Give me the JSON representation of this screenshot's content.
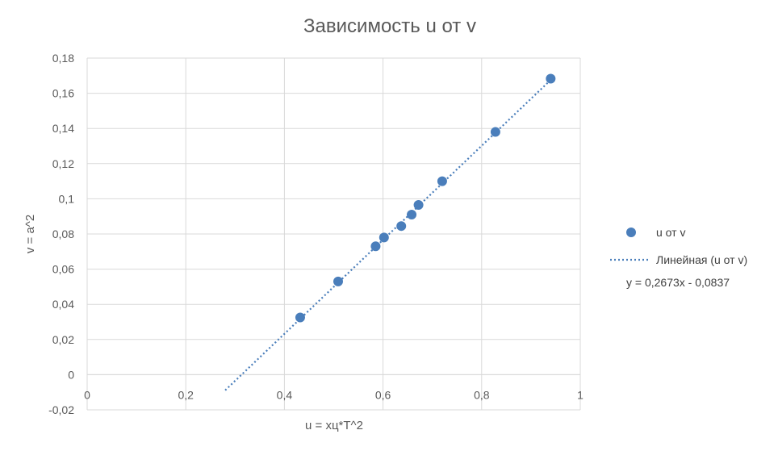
{
  "chart_data": {
    "type": "scatter",
    "title": "Зависимость u от v",
    "xlabel": "u = xц*T^2",
    "ylabel": "v = a^2",
    "xlim": [
      0,
      1
    ],
    "ylim": [
      -0.02,
      0.18
    ],
    "x_ticks": [
      "0",
      "0,2",
      "0,4",
      "0,6",
      "0,8",
      "1"
    ],
    "y_ticks": [
      "0,18",
      "0,16",
      "0,14",
      "0,12",
      "0,1",
      "0,08",
      "0,06",
      "0,04",
      "0,02",
      "0",
      "-0,02"
    ],
    "x_tick_values": [
      0,
      0.2,
      0.4,
      0.6,
      0.8,
      1
    ],
    "y_tick_values": [
      0.18,
      0.16,
      0.14,
      0.12,
      0.1,
      0.08,
      0.06,
      0.04,
      0.02,
      0,
      -0.02
    ],
    "grid": true,
    "legend_position": "right",
    "series": [
      {
        "name": "u от v",
        "color": "#4a7ebb",
        "marker": "circle",
        "x": [
          0.432,
          0.509,
          0.585,
          0.602,
          0.637,
          0.658,
          0.672,
          0.72,
          0.828,
          0.94
        ],
        "y": [
          0.0325,
          0.053,
          0.073,
          0.078,
          0.0845,
          0.091,
          0.0965,
          0.11,
          0.138,
          0.1683
        ]
      }
    ],
    "trendline": {
      "name": "Линейная (u от v)",
      "type": "linear",
      "equation": "y = 0,2673x - 0,0837",
      "slope": 0.2673,
      "intercept": -0.0837,
      "x_range": [
        0.28,
        0.94
      ],
      "color": "#4a7ebb",
      "style": "dotted"
    }
  }
}
